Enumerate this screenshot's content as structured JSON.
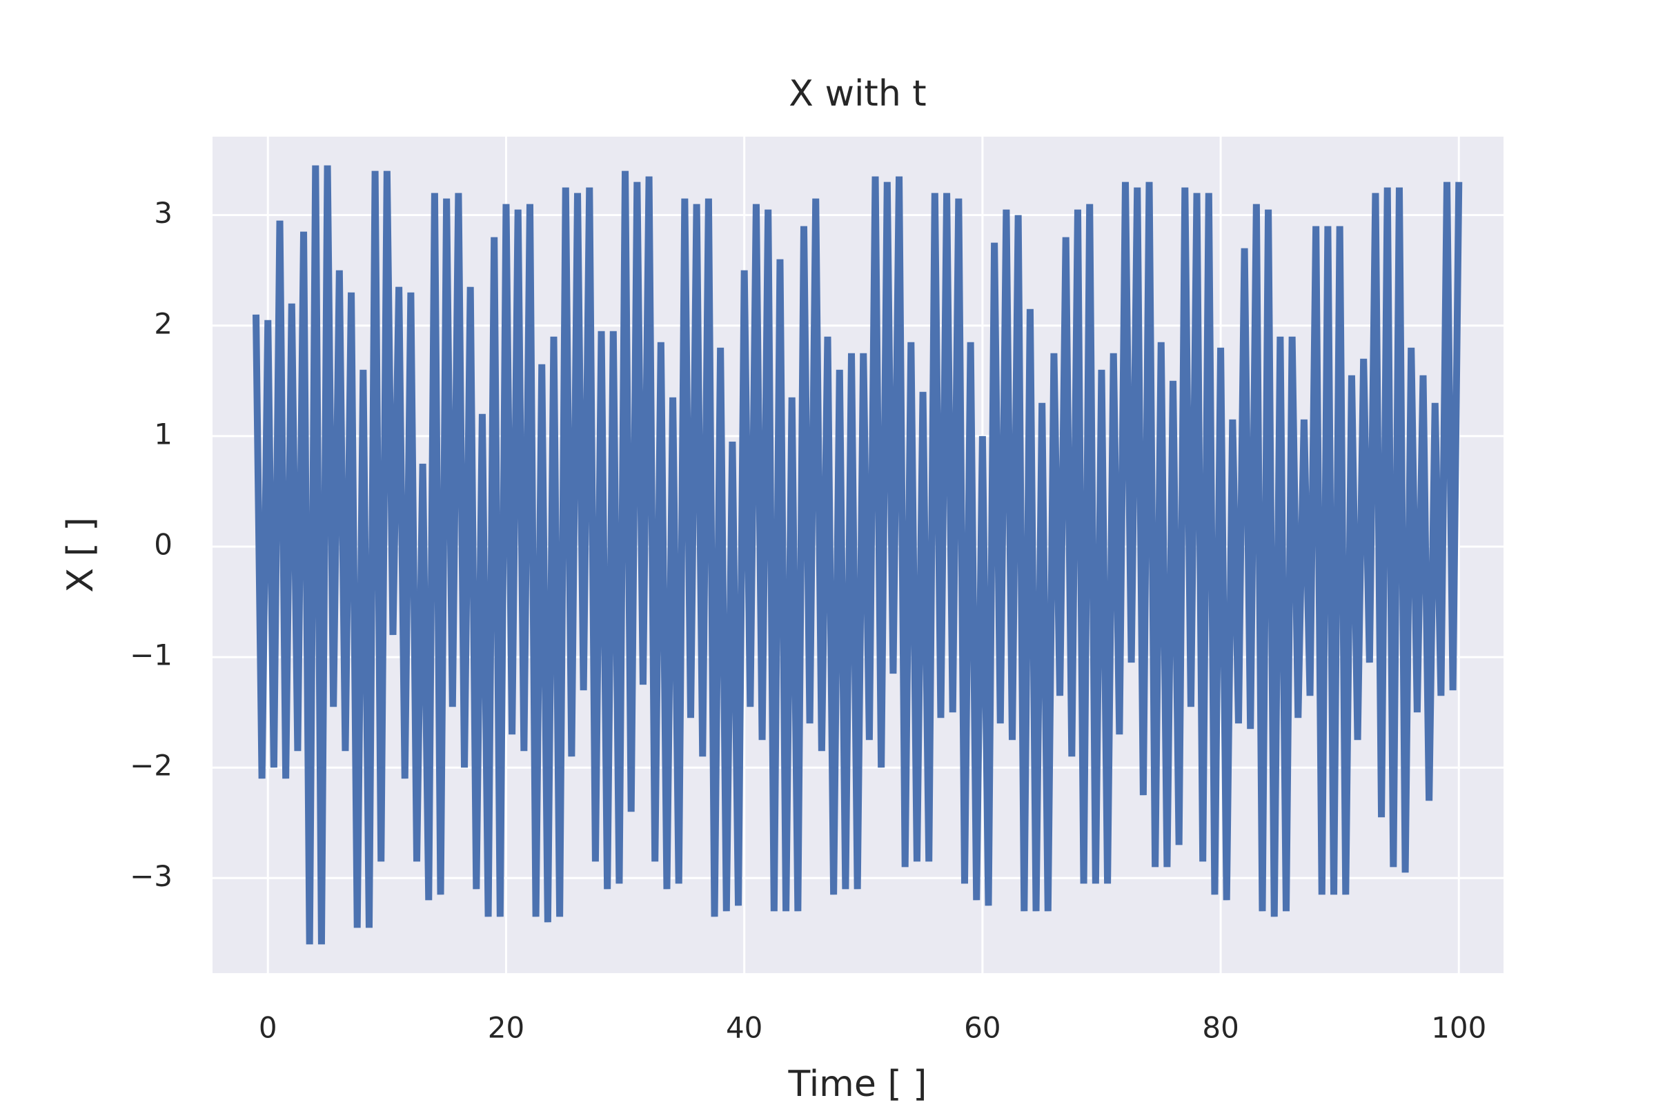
{
  "chart_data": {
    "type": "line",
    "title": "X with t",
    "x_label": "Time [ ]",
    "y_label": "X [ ]",
    "color": "#4c72b0",
    "grid": true,
    "xlim": [
      -4.65,
      103.75
    ],
    "ylim": [
      -3.86,
      3.71
    ],
    "xticks": [
      0,
      20,
      40,
      60,
      80,
      100
    ],
    "yticks": [
      {
        "value": -3,
        "label": "−3"
      },
      {
        "value": -2,
        "label": "−2"
      },
      {
        "value": -1,
        "label": "−1"
      },
      0,
      1,
      2,
      3
    ],
    "x": [
      -1,
      -0.5,
      0,
      0.5,
      1,
      1.5,
      2,
      2.5,
      3,
      3.5,
      4,
      4.5,
      5,
      5.5,
      6,
      6.5,
      7,
      7.5,
      8,
      8.5,
      9,
      9.5,
      10,
      10.5,
      11,
      11.5,
      12,
      12.5,
      13,
      13.5,
      14,
      14.5,
      15,
      15.5,
      16,
      16.5,
      17,
      17.5,
      18,
      18.5,
      19,
      19.5,
      20,
      20.5,
      21,
      21.5,
      22,
      22.5,
      23,
      23.5,
      24,
      24.5,
      25,
      25.5,
      26,
      26.5,
      27,
      27.5,
      28,
      28.5,
      29,
      29.5,
      30,
      30.5,
      31,
      31.5,
      32,
      32.5,
      33,
      33.5,
      34,
      34.5,
      35,
      35.5,
      36,
      36.5,
      37,
      37.5,
      38,
      38.5,
      39,
      39.5,
      40,
      40.5,
      41,
      41.5,
      42,
      42.5,
      43,
      43.5,
      44,
      44.5,
      45,
      45.5,
      46,
      46.5,
      47,
      47.5,
      48,
      48.5,
      49,
      49.5,
      50,
      50.5,
      51,
      51.5,
      52,
      52.5,
      53,
      53.5,
      54,
      54.5,
      55,
      55.5,
      56,
      56.5,
      57,
      57.5,
      58,
      58.5,
      59,
      59.5,
      60,
      60.5,
      61,
      61.5,
      62,
      62.5,
      63,
      63.5,
      64,
      64.5,
      65,
      65.5,
      66,
      66.5,
      67,
      67.5,
      68,
      68.5,
      69,
      69.5,
      70,
      70.5,
      71,
      71.5,
      72,
      72.5,
      73,
      73.5,
      74,
      74.5,
      75,
      75.5,
      76,
      76.5,
      77,
      77.5,
      78,
      78.5,
      79,
      79.5,
      80,
      80.5,
      81,
      81.5,
      82,
      82.5,
      83,
      83.5,
      84,
      84.5,
      85,
      85.5,
      86,
      86.5,
      87,
      87.5,
      88,
      88.5,
      89,
      89.5,
      90,
      90.5,
      91,
      91.5,
      92,
      92.5,
      93,
      93.5,
      94,
      94.5,
      95,
      95.5,
      96,
      96.5,
      97,
      97.5,
      98,
      98.5,
      99,
      99.5,
      100
    ],
    "values": [
      2.1,
      -2.1,
      2.05,
      -2.0,
      2.95,
      -2.1,
      2.2,
      -1.85,
      2.85,
      -3.6,
      3.45,
      -3.6,
      3.45,
      -1.45,
      2.5,
      -1.85,
      2.3,
      -3.45,
      1.6,
      -3.45,
      3.4,
      -2.85,
      3.4,
      -0.8,
      2.35,
      -2.1,
      2.3,
      -2.85,
      0.75,
      -3.2,
      3.2,
      -3.15,
      3.15,
      -1.45,
      3.2,
      -2.0,
      2.35,
      -3.1,
      1.2,
      -3.35,
      2.8,
      -3.35,
      3.1,
      -1.7,
      3.05,
      -1.85,
      3.1,
      -3.35,
      1.65,
      -3.4,
      1.9,
      -3.35,
      3.25,
      -1.9,
      3.2,
      -1.3,
      3.25,
      -2.85,
      1.95,
      -3.1,
      1.95,
      -3.05,
      3.4,
      -2.4,
      3.3,
      -1.25,
      3.35,
      -2.85,
      1.85,
      -3.1,
      1.35,
      -3.05,
      3.15,
      -1.55,
      3.1,
      -1.9,
      3.15,
      -3.35,
      1.8,
      -3.3,
      0.95,
      -3.25,
      2.5,
      -1.45,
      3.1,
      -1.75,
      3.05,
      -3.3,
      2.6,
      -3.3,
      1.35,
      -3.3,
      2.9,
      -1.6,
      3.15,
      -1.85,
      1.9,
      -3.15,
      1.6,
      -3.1,
      1.75,
      -3.1,
      1.75,
      -1.75,
      3.35,
      -2.0,
      3.3,
      -1.15,
      3.35,
      -2.9,
      1.85,
      -2.85,
      1.4,
      -2.85,
      3.2,
      -1.55,
      3.2,
      -1.5,
      3.15,
      -3.05,
      1.85,
      -3.2,
      1.0,
      -3.25,
      2.75,
      -1.6,
      3.05,
      -1.75,
      3.0,
      -3.3,
      2.15,
      -3.3,
      1.3,
      -3.3,
      1.75,
      -1.35,
      2.8,
      -1.9,
      3.05,
      -3.05,
      3.1,
      -3.05,
      1.6,
      -3.05,
      1.75,
      -1.7,
      3.3,
      -1.05,
      3.25,
      -2.25,
      3.3,
      -2.9,
      1.85,
      -2.9,
      1.5,
      -2.7,
      3.25,
      -1.45,
      3.2,
      -2.85,
      3.2,
      -3.15,
      1.8,
      -3.2,
      1.15,
      -1.6,
      2.7,
      -1.65,
      3.1,
      -3.3,
      3.05,
      -3.35,
      1.9,
      -3.3,
      1.9,
      -1.55,
      1.15,
      -1.35,
      2.9,
      -3.15,
      2.9,
      -3.15,
      2.9,
      -3.15,
      1.55,
      -1.75,
      1.7,
      -1.05,
      3.2,
      -2.45,
      3.25,
      -2.9,
      3.25,
      -2.95,
      1.8,
      -1.5,
      1.55,
      -2.3,
      1.3,
      -1.35,
      3.3,
      -1.3,
      3.3
    ]
  }
}
